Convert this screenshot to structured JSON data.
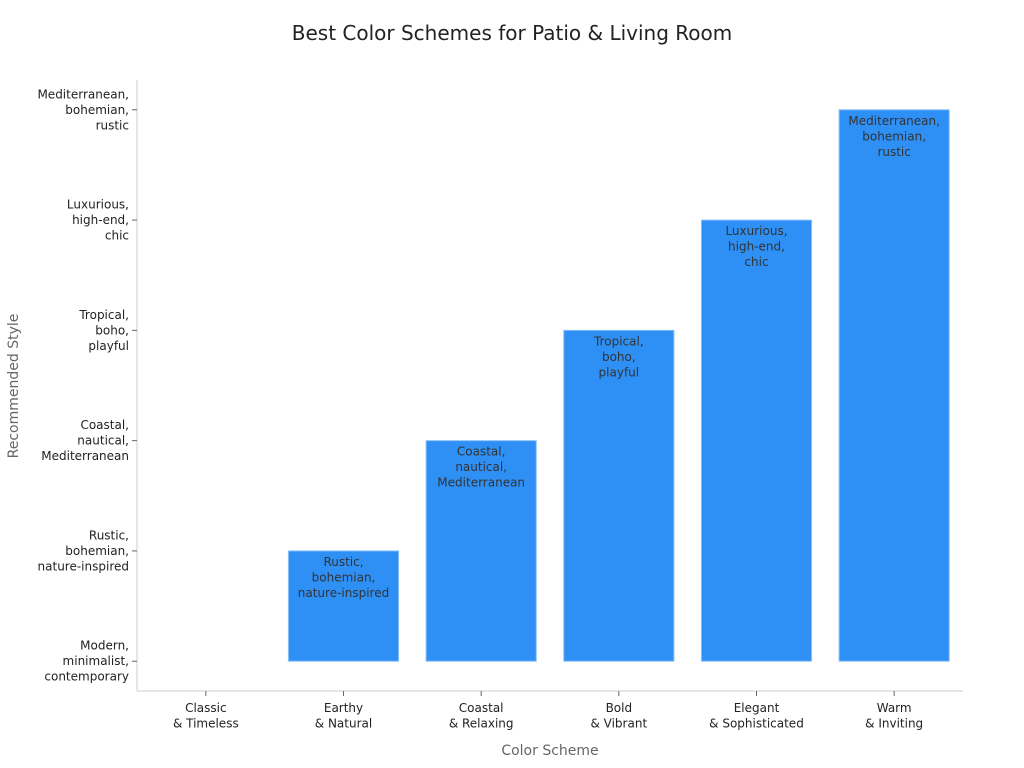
{
  "chart_data": {
    "type": "bar",
    "title": "Best Color Schemes for Patio & Living Room",
    "x_label": "Color Scheme",
    "y_label": "Recommended Style",
    "categories": [
      "Classic\n& Timeless",
      "Earthy\n& Natural",
      "Coastal\n& Relaxing",
      "Bold\n& Vibrant",
      "Elegant\n& Sophisticated",
      "Warm\n& Inviting"
    ],
    "values": [
      0,
      1,
      2,
      3,
      4,
      5
    ],
    "value_labels": [
      null,
      "Rustic,\nbohemian,\nnature-inspired",
      "Coastal,\nnautical,\nMediterranean",
      "Tropical,\nboho,\nplayful",
      "Luxurious,\nhigh-end,\nchic",
      "Mediterranean,\nbohemian,\nrustic"
    ],
    "color": "#2e90f5",
    "ylim": [
      -0.27,
      5.27
    ],
    "yticks": [
      {
        "value": 0,
        "label": "Modern,\nminimalist,\ncontemporary"
      },
      {
        "value": 1,
        "label": "Rustic,\nbohemian,\nnature-inspired"
      },
      {
        "value": 2,
        "label": "Coastal,\nnautical,\nMediterranean"
      },
      {
        "value": 3,
        "label": "Tropical,\nboho,\nplayful"
      },
      {
        "value": 4,
        "label": "Luxurious,\nhigh-end,\nchic"
      },
      {
        "value": 5,
        "label": "Mediterranean,\nbohemian,\nrustic"
      }
    ],
    "grid": false
  }
}
